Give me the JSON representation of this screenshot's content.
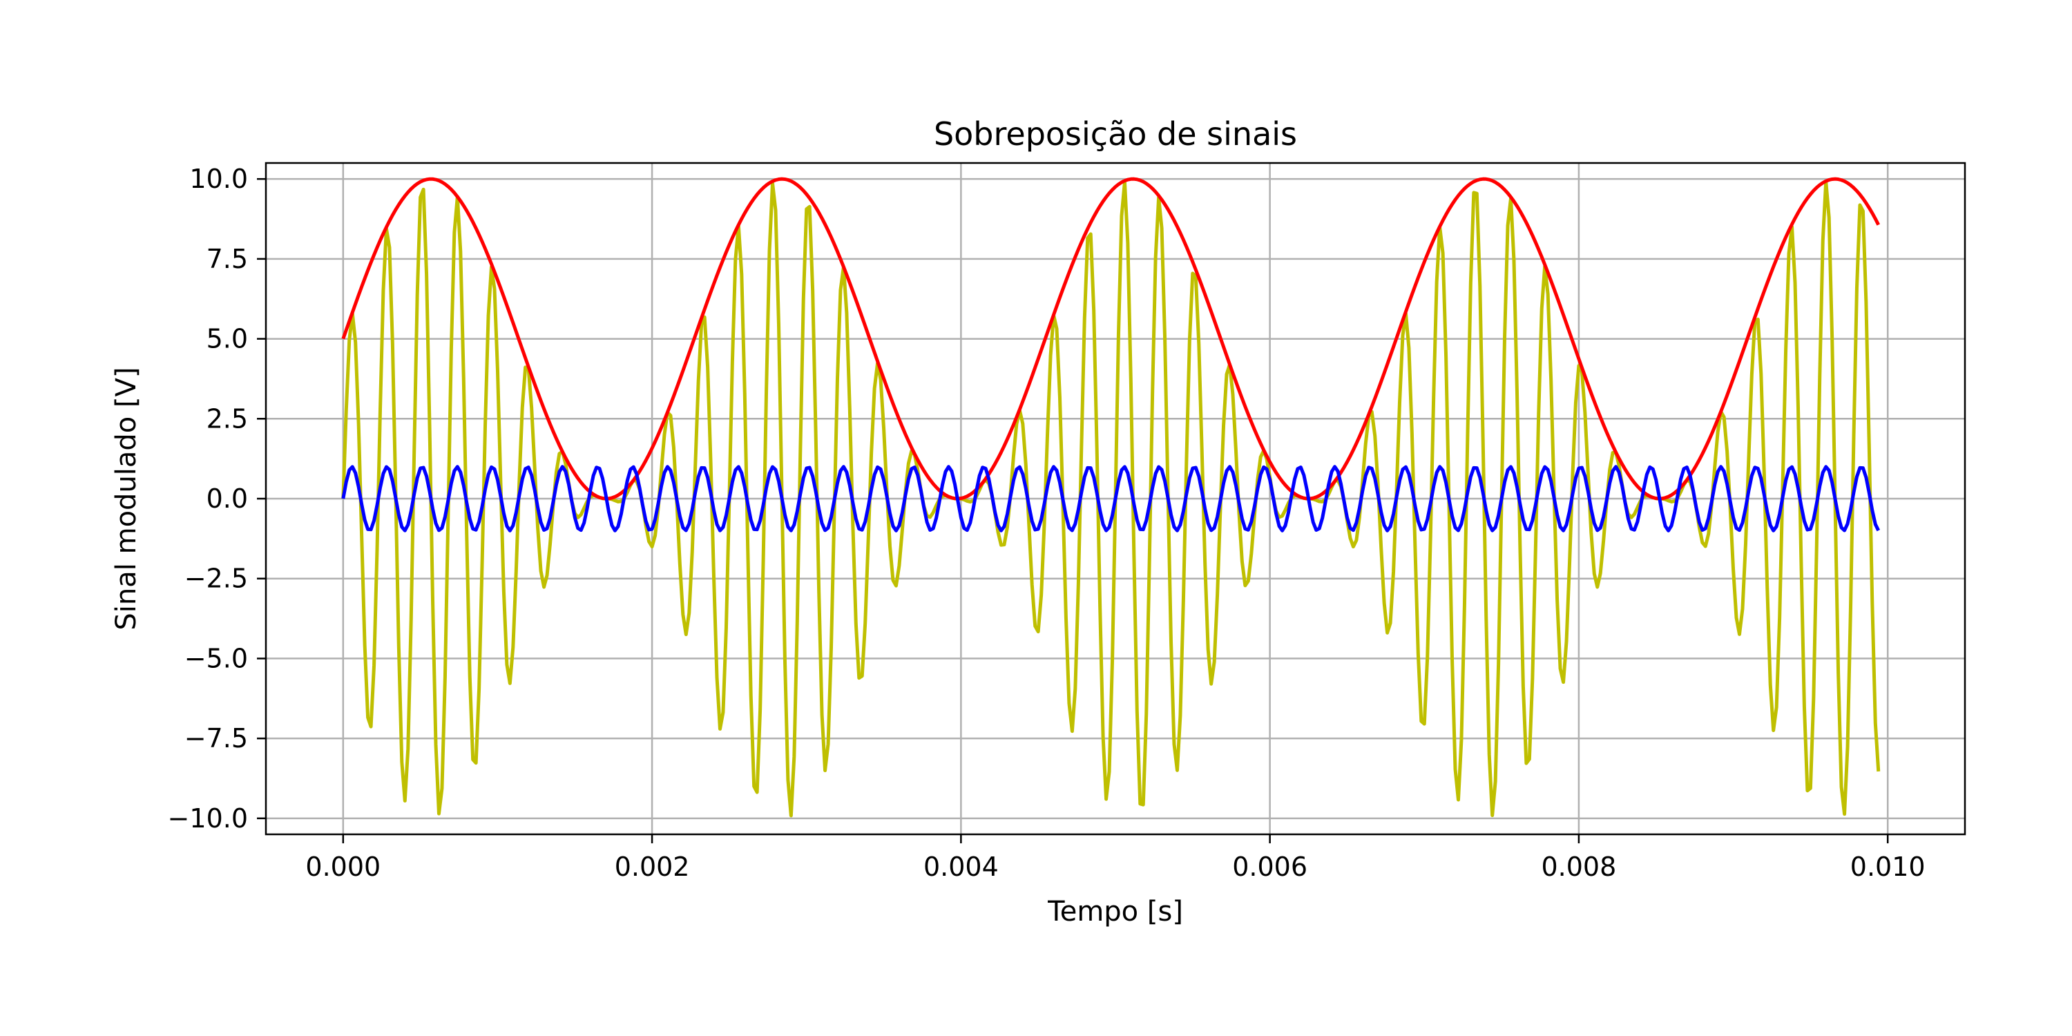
{
  "chart_data": {
    "type": "line",
    "title": "Sobreposição de sinais",
    "xlabel": "Tempo [s]",
    "ylabel": "Sinal modulado [V]",
    "xlim": [
      -0.0005,
      0.0105
    ],
    "ylim": [
      -10.5,
      10.5
    ],
    "x_ticks": [
      0.0,
      0.002,
      0.004,
      0.006,
      0.008,
      0.01
    ],
    "x_tick_labels": [
      "0.000",
      "0.002",
      "0.004",
      "0.006",
      "0.008",
      "0.010"
    ],
    "y_ticks": [
      -10.0,
      -7.5,
      -5.0,
      -2.5,
      0.0,
      2.5,
      5.0,
      7.5,
      10.0
    ],
    "y_tick_labels": [
      "−10.0",
      "−7.5",
      "−5.0",
      "−2.5",
      "0.0",
      "2.5",
      "5.0",
      "7.5",
      "10.0"
    ],
    "grid": true,
    "x_range_data": [
      0.0,
      0.00995
    ],
    "sample_step": 2e-05,
    "series": [
      {
        "color": "#bfbf00",
        "description": "modulated signal: (5 + 5·sin(2π·440·t)) · sin(2π·4400·t)",
        "offset": 5,
        "mod_amplitude": 5,
        "mod_frequency_hz": 440,
        "carrier_amplitude": 1,
        "carrier_frequency_hz": 4400,
        "kind": "am"
      },
      {
        "color": "#ff0000",
        "description": "envelope: 5 + 5·sin(2π·440·t)",
        "offset": 5,
        "amplitude": 5,
        "frequency_hz": 440,
        "kind": "sine"
      },
      {
        "color": "#0000ff",
        "description": "carrier: sin(2π·4400·t)",
        "offset": 0,
        "amplitude": 1,
        "frequency_hz": 4400,
        "kind": "sine"
      }
    ]
  }
}
